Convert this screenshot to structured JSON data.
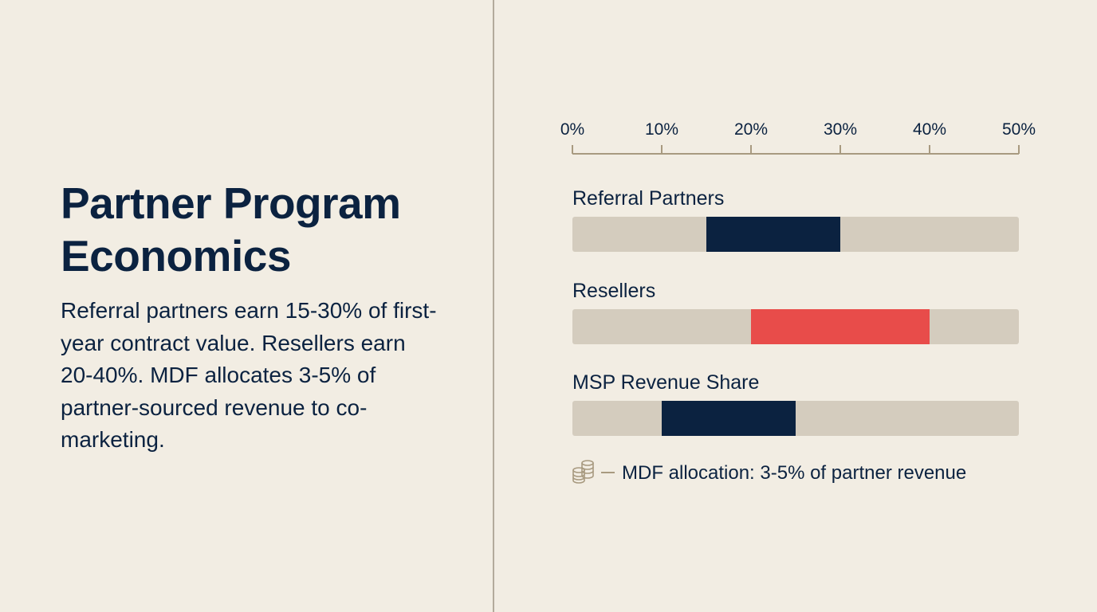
{
  "slide": {
    "title": "Partner Program Economics",
    "body": "Referral partners earn 15-30% of first-year contract value. Resellers earn 20-40%. MDF allocates 3-5% of partner-sourced revenue to co-marketing."
  },
  "chart_data": {
    "type": "bar",
    "orientation": "horizontal-range",
    "xlim": [
      0,
      50
    ],
    "ticks": [
      "0%",
      "10%",
      "20%",
      "30%",
      "40%",
      "50%"
    ],
    "tick_values": [
      0,
      10,
      20,
      30,
      40,
      50
    ],
    "categories": [
      "Referral Partners",
      "Resellers",
      "MSP Revenue Share"
    ],
    "ranges": [
      {
        "label": "Referral Partners",
        "low": 15,
        "high": 30,
        "color": "#0b2240"
      },
      {
        "label": "Resellers",
        "low": 20,
        "high": 40,
        "color": "#e84c4a"
      },
      {
        "label": "MSP Revenue Share",
        "low": 10,
        "high": 25,
        "color": "#0b2240"
      }
    ],
    "track_color": "#d4ccbe",
    "annotation": {
      "text": "MDF allocation: 3-5% of partner revenue",
      "icon": "coins-icon"
    }
  }
}
